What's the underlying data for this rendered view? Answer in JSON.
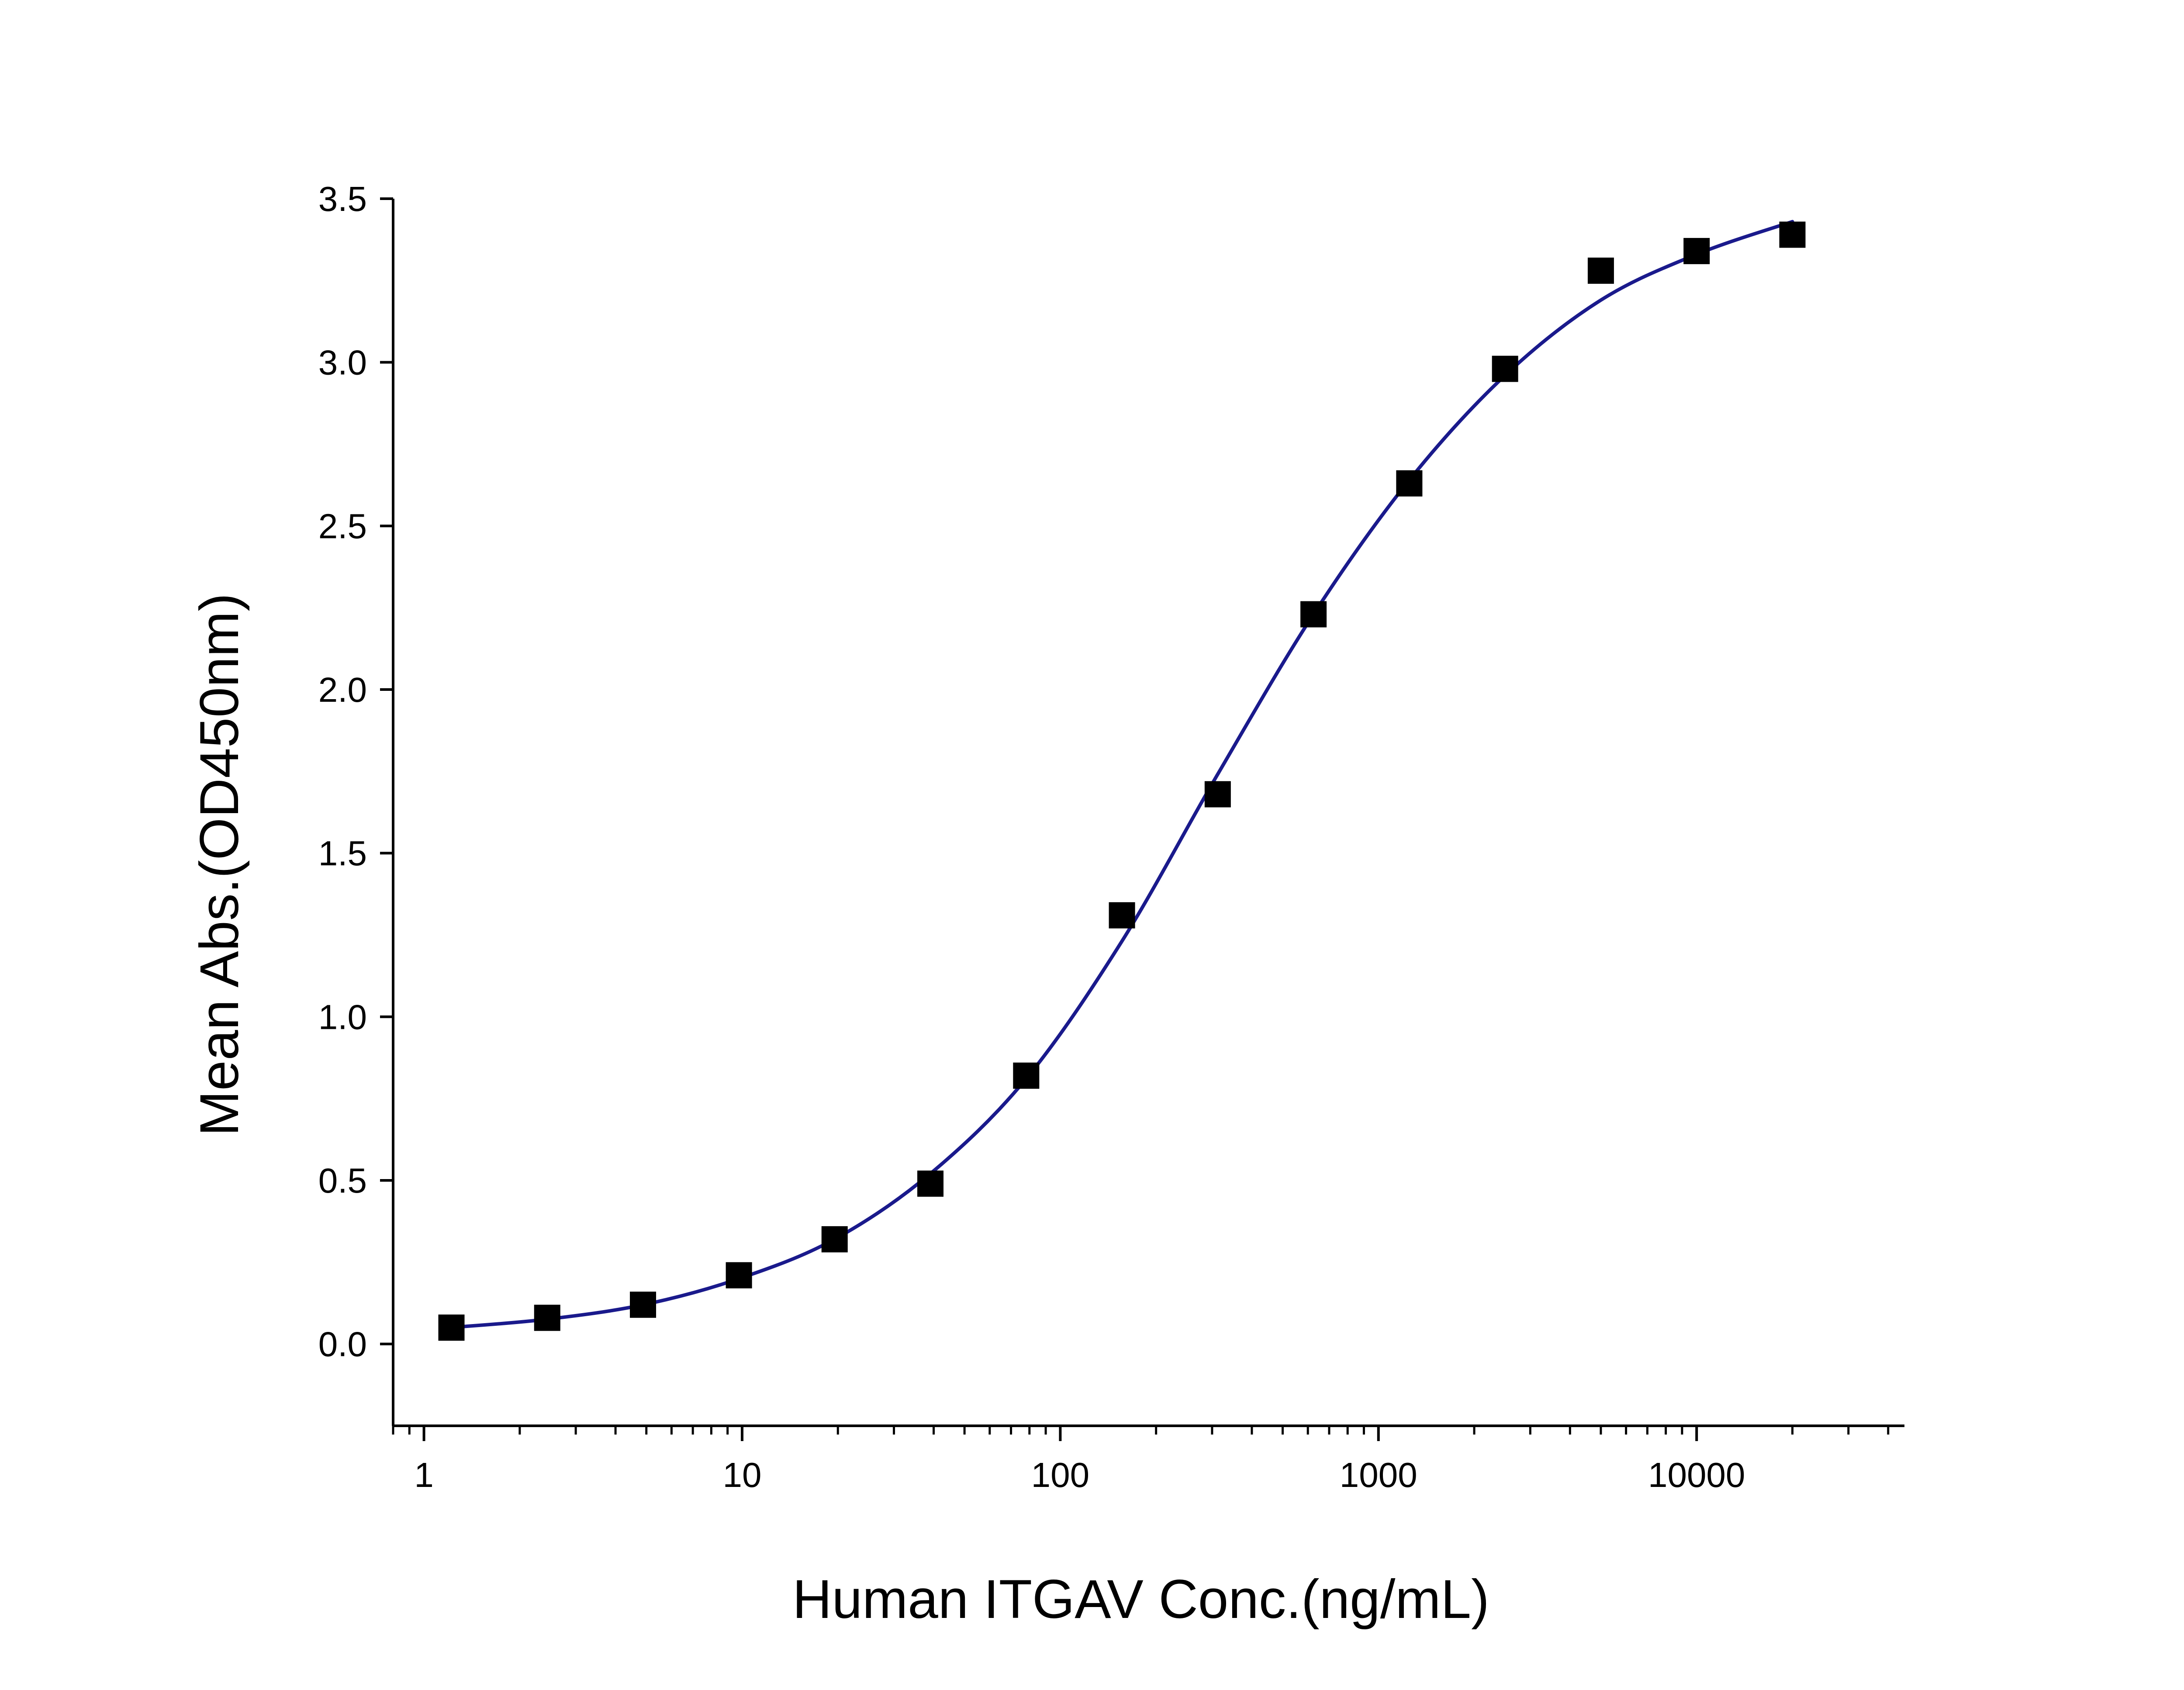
{
  "chart_data": {
    "type": "scatter",
    "title": "",
    "xlabel": "Human ITGAV Conc.(ng/mL)",
    "ylabel": "Mean Abs.(OD450nm)",
    "x_scale": "log",
    "xlim": [
      0.8,
      45000
    ],
    "ylim": [
      -0.25,
      3.5
    ],
    "x_ticks": [
      1,
      10,
      100,
      1000,
      10000
    ],
    "x_tick_labels": [
      "1",
      "10",
      "100",
      "1000",
      "10000"
    ],
    "y_ticks": [
      0,
      0.5,
      1,
      1.5,
      2,
      2.5,
      3,
      3.5
    ],
    "y_tick_labels": [
      "0.0",
      "0.5",
      "1.0",
      "1.5",
      "2.0",
      "2.5",
      "3.0",
      "3.5"
    ],
    "grid": false,
    "legend": "none",
    "series": [
      {
        "kind": "points",
        "marker": "square",
        "color": "#000000",
        "x": [
          1.22,
          2.44,
          4.88,
          9.77,
          19.53,
          39.06,
          78.13,
          156.25,
          312.5,
          625,
          1250,
          2500,
          5000,
          10000,
          20000
        ],
        "y": [
          0.05,
          0.08,
          0.12,
          0.21,
          0.32,
          0.49,
          0.82,
          1.31,
          1.68,
          2.23,
          2.63,
          2.98,
          3.28,
          3.34,
          3.39
        ]
      },
      {
        "kind": "fit-line",
        "color": "#1a1a8c",
        "x": [
          1.2,
          2.4,
          4.9,
          9.8,
          19.5,
          39,
          78,
          156,
          312,
          625,
          1250,
          2500,
          5000,
          10000,
          20000
        ],
        "y": [
          0.05,
          0.075,
          0.12,
          0.2,
          0.32,
          0.52,
          0.81,
          1.23,
          1.74,
          2.23,
          2.64,
          2.96,
          3.19,
          3.33,
          3.43
        ]
      }
    ]
  }
}
